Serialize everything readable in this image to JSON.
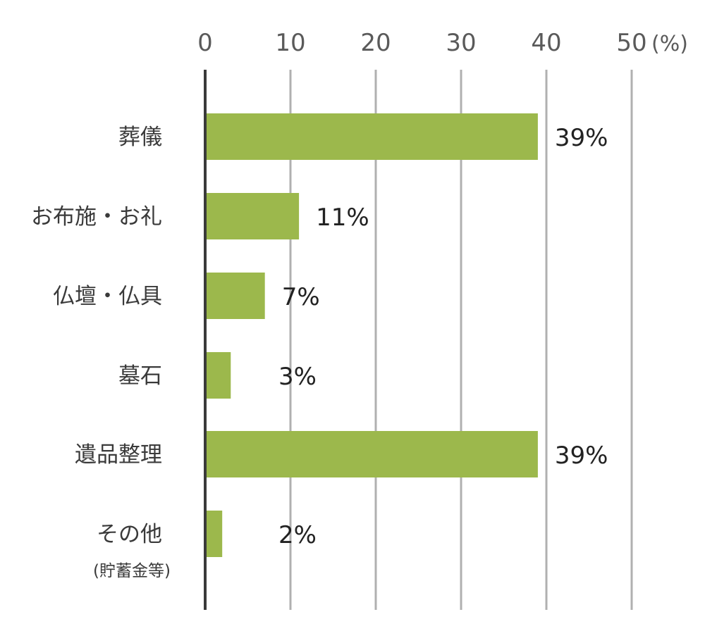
{
  "chart_data": {
    "type": "bar",
    "orientation": "horizontal",
    "categories": [
      "葬儀",
      "お布施・お礼",
      "仏壇・仏具",
      "墓石",
      "遺品整理",
      "その他"
    ],
    "category_sublabels": [
      "",
      "",
      "",
      "",
      "",
      "(貯蓄金等)"
    ],
    "values": [
      39,
      11,
      7,
      3,
      39,
      2
    ],
    "data_labels": [
      "39%",
      "11%",
      "7%",
      "3%",
      "39%",
      "2%"
    ],
    "x_ticks": [
      "0",
      "10",
      "20",
      "30",
      "40",
      "50"
    ],
    "x_tick_values": [
      0,
      10,
      20,
      30,
      40,
      50
    ],
    "unit": "(%)",
    "xlim": [
      0,
      50
    ],
    "axis_position": "top",
    "grid": "vertical",
    "bar_color": "#9cb84c",
    "grid_color": "#b0b0b0",
    "axis_color": "#3a3a3a"
  }
}
